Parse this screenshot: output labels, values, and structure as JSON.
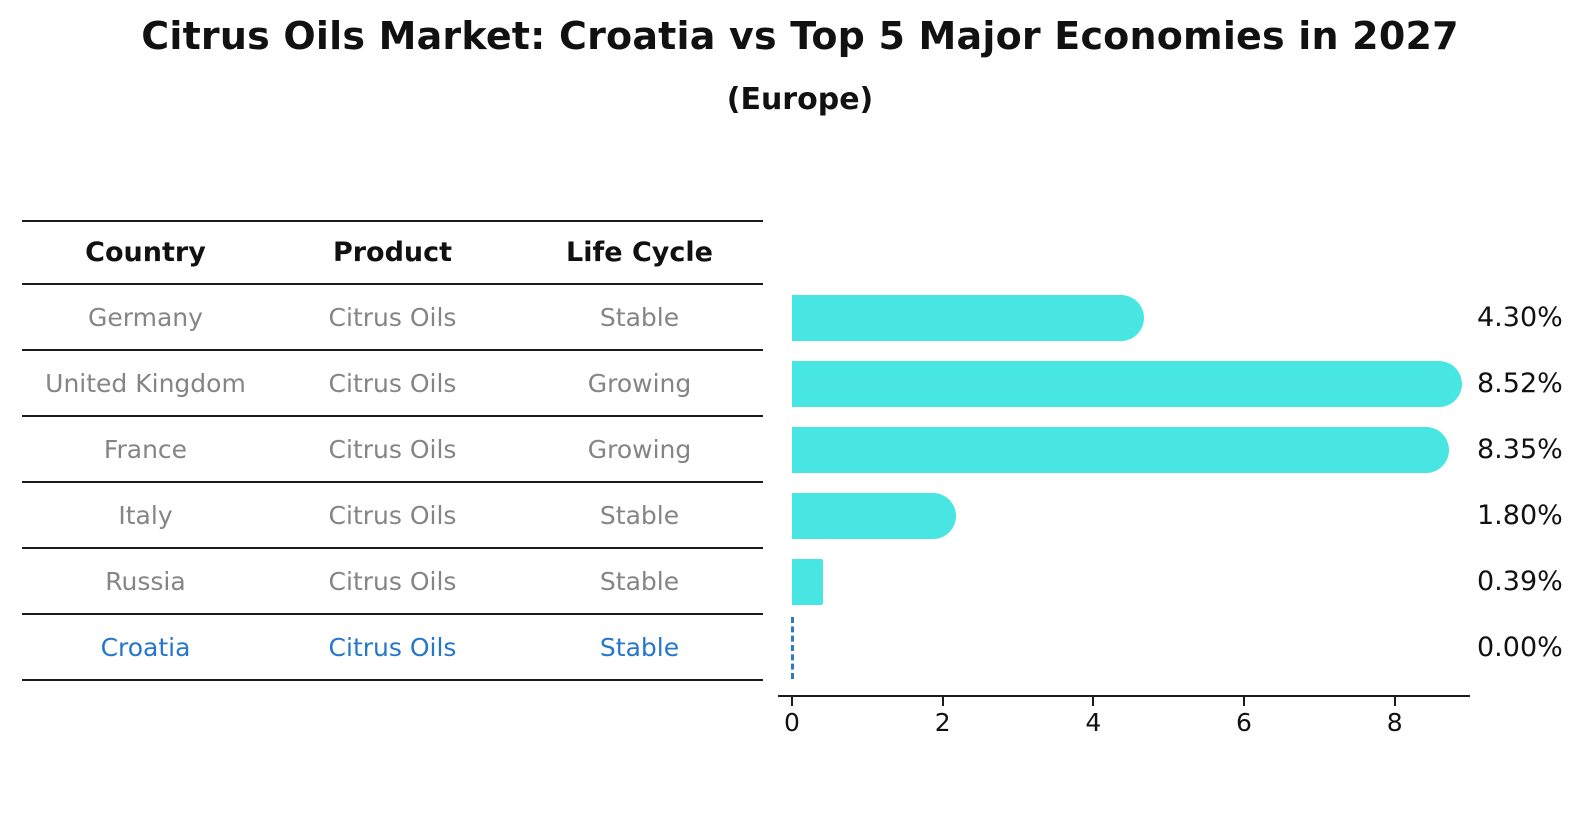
{
  "title": "Citrus Oils Market: Croatia vs Top 5 Major Economies in 2027",
  "subtitle": "(Europe)",
  "table": {
    "headers": [
      "Country",
      "Product",
      "Life Cycle"
    ],
    "rows": [
      {
        "country": "Germany",
        "product": "Citrus Oils",
        "life_cycle": "Stable",
        "highlight": false
      },
      {
        "country": "United Kingdom",
        "product": "Citrus Oils",
        "life_cycle": "Growing",
        "highlight": false
      },
      {
        "country": "France",
        "product": "Citrus Oils",
        "life_cycle": "Growing",
        "highlight": false
      },
      {
        "country": "Italy",
        "product": "Citrus Oils",
        "life_cycle": "Stable",
        "highlight": false
      },
      {
        "country": "Russia",
        "product": "Citrus Oils",
        "life_cycle": "Stable",
        "highlight": true
      }
    ]
  },
  "highlight_row": {
    "country": "Croatia",
    "product": "Citrus Oils",
    "life_cycle": "Stable"
  },
  "chart_data": {
    "type": "bar",
    "orientation": "horizontal",
    "title": "Citrus Oils Market: Croatia vs Top 5 Major Economies in 2027",
    "subtitle": "(Europe)",
    "categories": [
      "Germany",
      "United Kingdom",
      "France",
      "Italy",
      "Russia",
      "Croatia"
    ],
    "values": [
      4.3,
      8.52,
      8.35,
      1.8,
      0.39,
      0.0
    ],
    "value_labels": [
      "4.30%",
      "8.52%",
      "8.35%",
      "1.80%",
      "0.39%",
      "0.00%"
    ],
    "x_ticks": [
      0,
      2,
      4,
      6,
      8
    ],
    "xlim": [
      0,
      9
    ],
    "grid": false,
    "legend": "none",
    "bar_color": "#48e6e2",
    "highlight_color": "#2577cd",
    "zero_value_marker": "dashed-line"
  }
}
